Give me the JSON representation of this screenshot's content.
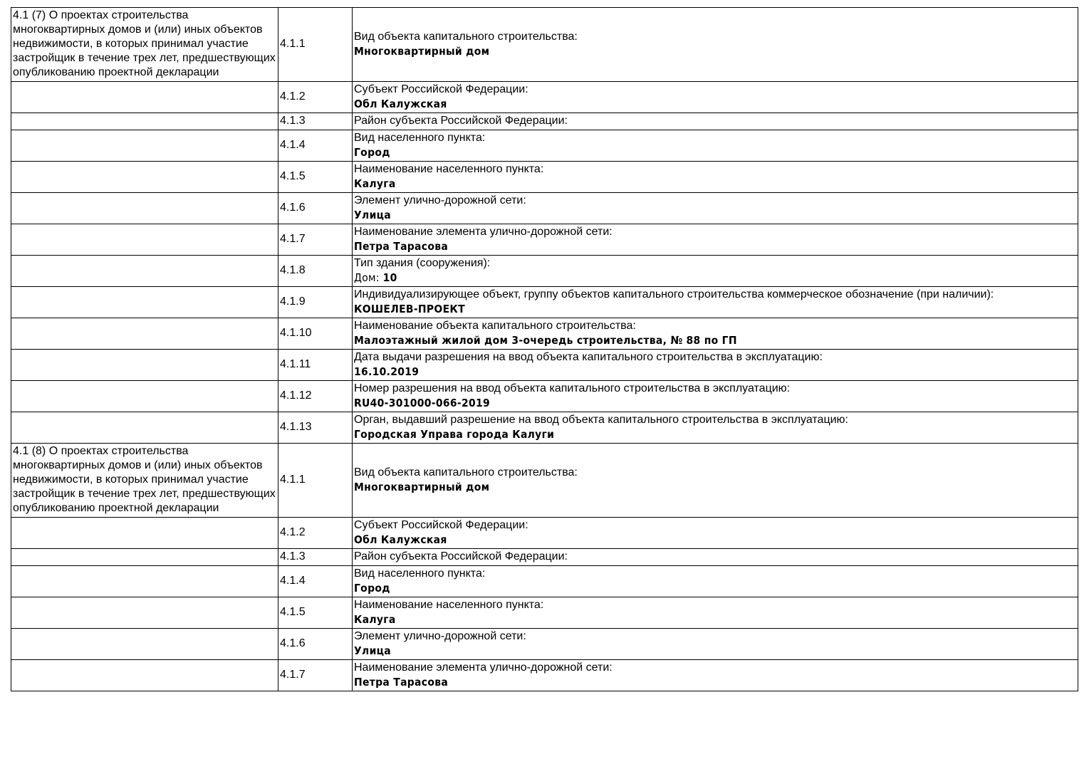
{
  "sections": [
    {
      "title": "4.1 (7) О проектах строительства многоквартирных домов и (или) иных объектов недвижимости, в которых принимал участие застройщик в течение трех лет, предшествующих опубликованию проектной декларации",
      "rows": [
        {
          "code": "4.1.1",
          "label": "Вид объекта капитального строительства:",
          "value": "Многоквартирный дом"
        },
        {
          "code": "4.1.2",
          "label": "Субъект Российской Федерации:",
          "value": "Обл Калужская"
        },
        {
          "code": "4.1.3",
          "label": "Район субъекта Российской Федерации:",
          "value": ""
        },
        {
          "code": "4.1.4",
          "label": "Вид населенного пункта:",
          "value": "Город"
        },
        {
          "code": "4.1.5",
          "label": "Наименование населенного пункта:",
          "value": "Калуга"
        },
        {
          "code": "4.1.6",
          "label": "Элемент улично-дорожной сети:",
          "value": "Улица"
        },
        {
          "code": "4.1.7",
          "label": "Наименование элемента улично-дорожной сети:",
          "value": "Петра Тарасова"
        },
        {
          "code": "4.1.8",
          "label": "Тип здания (сооружения):",
          "value_prefix": "Дом: ",
          "value": "10"
        },
        {
          "code": "4.1.9",
          "label": "Индивидуализирующее объект, группу объектов капитального строительства коммерческое обозначение (при наличии):",
          "value": "КОШЕЛЕВ-ПРОЕКТ"
        },
        {
          "code": "4.1.10",
          "label": "Наименование объекта капитального строительства:",
          "value": "Малоэтажный жилой дом 3-очередь строительства, № 88 по ГП"
        },
        {
          "code": "4.1.11",
          "label": "Дата выдачи разрешения на ввод объекта капитального строительства в эксплуатацию:",
          "value": "16.10.2019"
        },
        {
          "code": "4.1.12",
          "label": "Номер разрешения на ввод объекта капитального строительства в эксплуатацию:",
          "value": "RU40-301000-066-2019"
        },
        {
          "code": "4.1.13",
          "label": "Орган, выдавший разрешение на ввод объекта капитального строительства в эксплуатацию:",
          "value": "Городская Управа города Калуги"
        }
      ]
    },
    {
      "title": "4.1 (8) О проектах строительства многоквартирных домов и (или) иных объектов недвижимости, в которых принимал участие застройщик в течение трех лет, предшествующих опубликованию проектной декларации",
      "rows": [
        {
          "code": "4.1.1",
          "label": "Вид объекта капитального строительства:",
          "value": "Многоквартирный дом"
        },
        {
          "code": "4.1.2",
          "label": "Субъект Российской Федерации:",
          "value": "Обл Калужская"
        },
        {
          "code": "4.1.3",
          "label": "Район субъекта Российской Федерации:",
          "value": ""
        },
        {
          "code": "4.1.4",
          "label": "Вид населенного пункта:",
          "value": "Город"
        },
        {
          "code": "4.1.5",
          "label": "Наименование населенного пункта:",
          "value": "Калуга"
        },
        {
          "code": "4.1.6",
          "label": "Элемент улично-дорожной сети:",
          "value": "Улица"
        },
        {
          "code": "4.1.7",
          "label": "Наименование элемента улично-дорожной сети:",
          "value": "Петра Тарасова"
        }
      ]
    }
  ]
}
